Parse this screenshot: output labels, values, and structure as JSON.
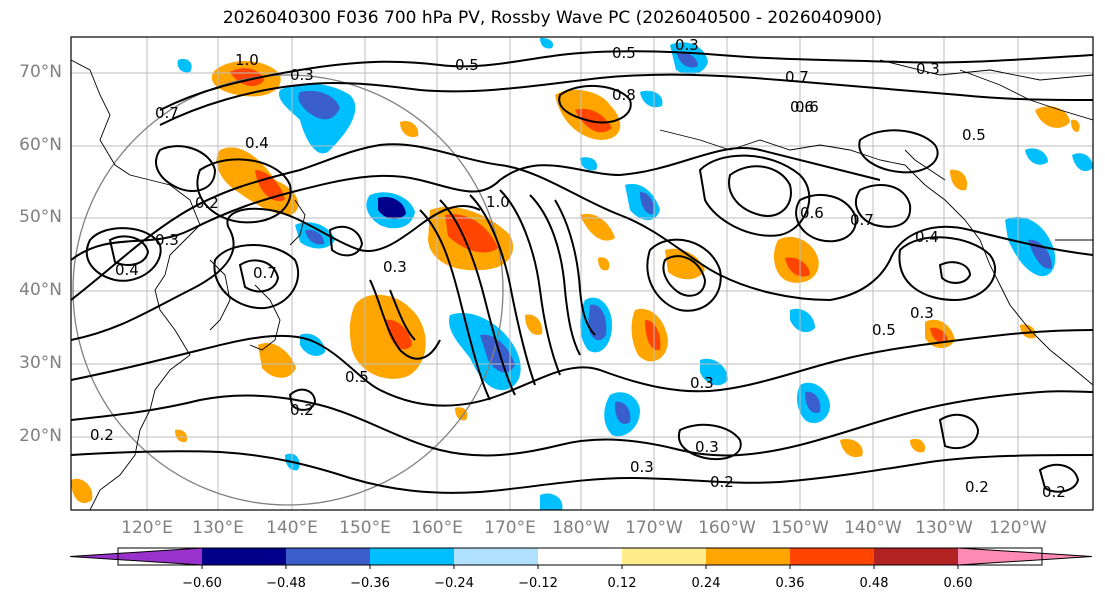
{
  "title": "2026040300 F036 700 hPa PV, Rossby Wave PC (2026040500 - 2026040900)",
  "lat_labels": [
    "70°N",
    "60°N",
    "50°N",
    "40°N",
    "30°N",
    "20°N"
  ],
  "lon_labels": [
    "120°E",
    "130°E",
    "140°E",
    "150°E",
    "160°E",
    "170°E",
    "180°W",
    "170°W",
    "160°W",
    "150°W",
    "140°W",
    "130°W",
    "120°W"
  ],
  "colorbar": {
    "ticks": [
      "−0.60",
      "−0.48",
      "−0.36",
      "−0.24",
      "−0.12",
      "0.12",
      "0.24",
      "0.36",
      "0.48",
      "0.60"
    ],
    "colors": [
      "#9932cc",
      "#00008b",
      "#3a5fcd",
      "#00bfff",
      "#b0e2ff",
      "#ffffff",
      "#ffec8b",
      "#ffa500",
      "#ff4500",
      "#b22222",
      "#ff8ab4"
    ],
    "extend": "both"
  },
  "contour_labels": [
    "0.3",
    "0.5",
    "0.7",
    "1.0",
    "0.8",
    "0.6",
    "0.4",
    "0.2",
    "0.3",
    "0.5",
    "0.7",
    "0.6",
    "0.5",
    "0.4",
    "0.3",
    "0.2",
    "0.2",
    "0.3",
    "0.2",
    "0.3",
    "0.5",
    "0.7",
    "0.6",
    "1.0",
    "0.3",
    "0.4",
    "0.7",
    "0.5",
    "0.3",
    "0.3",
    "0.2",
    "0.3",
    "0.2"
  ]
}
